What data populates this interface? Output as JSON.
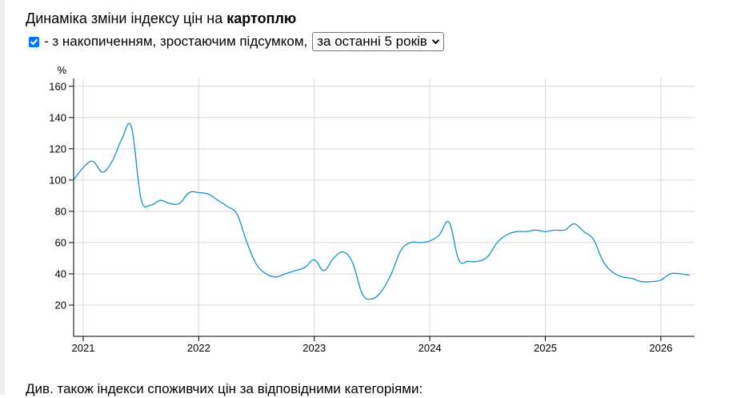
{
  "header": {
    "title_prefix": "Динаміка зміни індексу цін на ",
    "title_subject": "картоплю",
    "checkbox_checked": true,
    "checkbox_label": "- з накопиченням, зростаючим підсумком,",
    "period_select": "за останні 5 років"
  },
  "chart_data": {
    "type": "line",
    "ylabel": "%",
    "ylim": [
      0,
      165
    ],
    "yticks": [
      20,
      40,
      60,
      80,
      100,
      120,
      140,
      160
    ],
    "xlim": [
      2020.917,
      2026.292
    ],
    "xticks": [
      "2021",
      "2022",
      "2023",
      "2024",
      "2025",
      "2026"
    ],
    "grid": true,
    "color": "#1a93c0",
    "series": [
      {
        "x": [
          2020.917,
          2021.0,
          2021.083,
          2021.167,
          2021.25,
          2021.333,
          2021.417,
          2021.5,
          2021.583,
          2021.667,
          2021.75,
          2021.833,
          2021.917,
          2022.0,
          2022.083,
          2022.167,
          2022.25,
          2022.333,
          2022.417,
          2022.5,
          2022.583,
          2022.667,
          2022.75,
          2022.833,
          2022.917,
          2023.0,
          2023.083,
          2023.167,
          2023.25,
          2023.333,
          2023.417,
          2023.5,
          2023.583,
          2023.667,
          2023.75,
          2023.833,
          2023.917,
          2024.0,
          2024.083,
          2024.167,
          2024.25,
          2024.333,
          2024.417,
          2024.5,
          2024.583,
          2024.667,
          2024.75,
          2024.833,
          2024.917,
          2025.0,
          2025.083,
          2025.167,
          2025.25,
          2025.333,
          2025.417,
          2025.5,
          2025.583,
          2025.667,
          2025.75,
          2025.833,
          2025.917,
          2026.0,
          2026.083,
          2026.167,
          2026.25
        ],
        "values": [
          100,
          108,
          112,
          105,
          112,
          126,
          134,
          88,
          84,
          87,
          85,
          85,
          92,
          92,
          91,
          87,
          83,
          78,
          60,
          46,
          40,
          38,
          40,
          42,
          44,
          49,
          42,
          50,
          54,
          47,
          27,
          24,
          29,
          40,
          55,
          60,
          60,
          61,
          65,
          73,
          49,
          48,
          48,
          51,
          60,
          65,
          67,
          67,
          68,
          67,
          68,
          68,
          72,
          67,
          62,
          48,
          41,
          38,
          37,
          35,
          35,
          36,
          40,
          40,
          39
        ]
      }
    ]
  },
  "footer": {
    "text": "Див. також індекси споживчих цін за відповідними категоріями:"
  }
}
